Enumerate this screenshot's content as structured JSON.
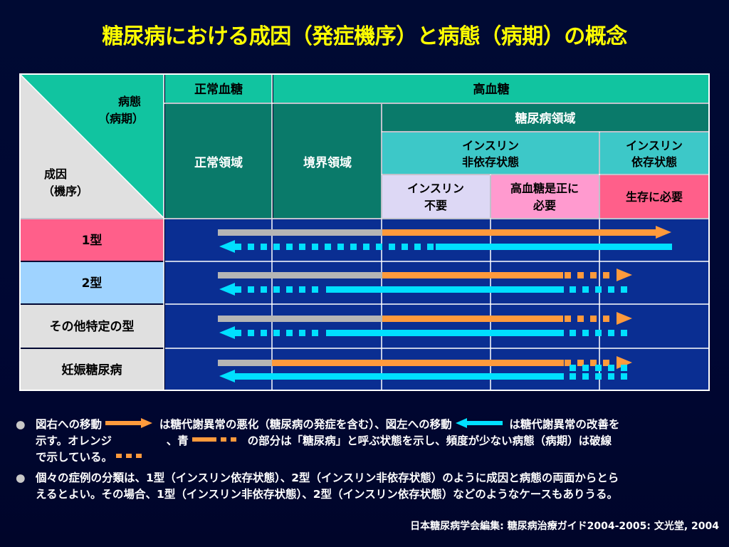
{
  "title": "糖尿病における成因（発症機序）と病態（病期）の概念",
  "header": {
    "corner_top": "病態",
    "corner_top2": "（病期）",
    "corner_bottom": "成因",
    "corner_bottom2": "（機序）",
    "normal_glucose": "正常血糖",
    "high_glucose": "高血糖",
    "normal_region": "正常領域",
    "border_region": "境界領域",
    "diabetes_region": "糖尿病領域",
    "insulin_independent_1": "インスリン",
    "insulin_independent_2": "非依存状態",
    "insulin_dependent_1": "インスリン",
    "insulin_dependent_2": "依存状態",
    "insulin_unneeded_1": "インスリン",
    "insulin_unneeded_2": "不要",
    "correction_needed_1": "高血糖是正に",
    "correction_needed_2": "必要",
    "survival_needed": "生存に必要"
  },
  "rows": [
    {
      "label": "1型"
    },
    {
      "label": "2型"
    },
    {
      "label": "その他特定の型"
    },
    {
      "label": "妊娠糖尿病"
    }
  ],
  "notes": {
    "note1_a": "図右への移動",
    "note1_b": "は糖代謝異常の悪化（糖尿病の発症を含む）、図左への移動",
    "note1_c": "は糖代謝異常の改善を",
    "note1_d": "示す。オレンジ",
    "note1_e": "、青",
    "note1_f": "の部分は「糖尿病」と呼ぶ状態を示し、頻度が少ない病態（病期）は破線",
    "note1_g": "で示している。",
    "note2_a": "個々の症例の分類は、1型（インスリン依存状態）、2型（インスリン非依存状態）のように成因と病態の両面からとら",
    "note2_b": "えるとよい。その場合、1型（インスリン非依存状態）、2型（インスリン依存状態）などのようなケースもありうる。"
  },
  "citation": "日本糖尿病学会編集: 糖尿病治療ガイド2004-2005: 文光堂, 2004",
  "colors": {
    "title": "#ffff00",
    "teal_header": "#11c4a0",
    "dark_teal": "#0a7a6a",
    "light_teal": "#3dc8c8",
    "lavender": "#ddd8f5",
    "pink": "#ff9acf",
    "rose": "#ff5f8a",
    "light_blue": "#9fd3ff",
    "light_gray": "#e0e0e0",
    "navy_cell": "#0a2e92",
    "orange_arrow": "#ff9a3c",
    "cyan_arrow": "#00e0ff",
    "gray_arrow": "#b5b5b5"
  }
}
